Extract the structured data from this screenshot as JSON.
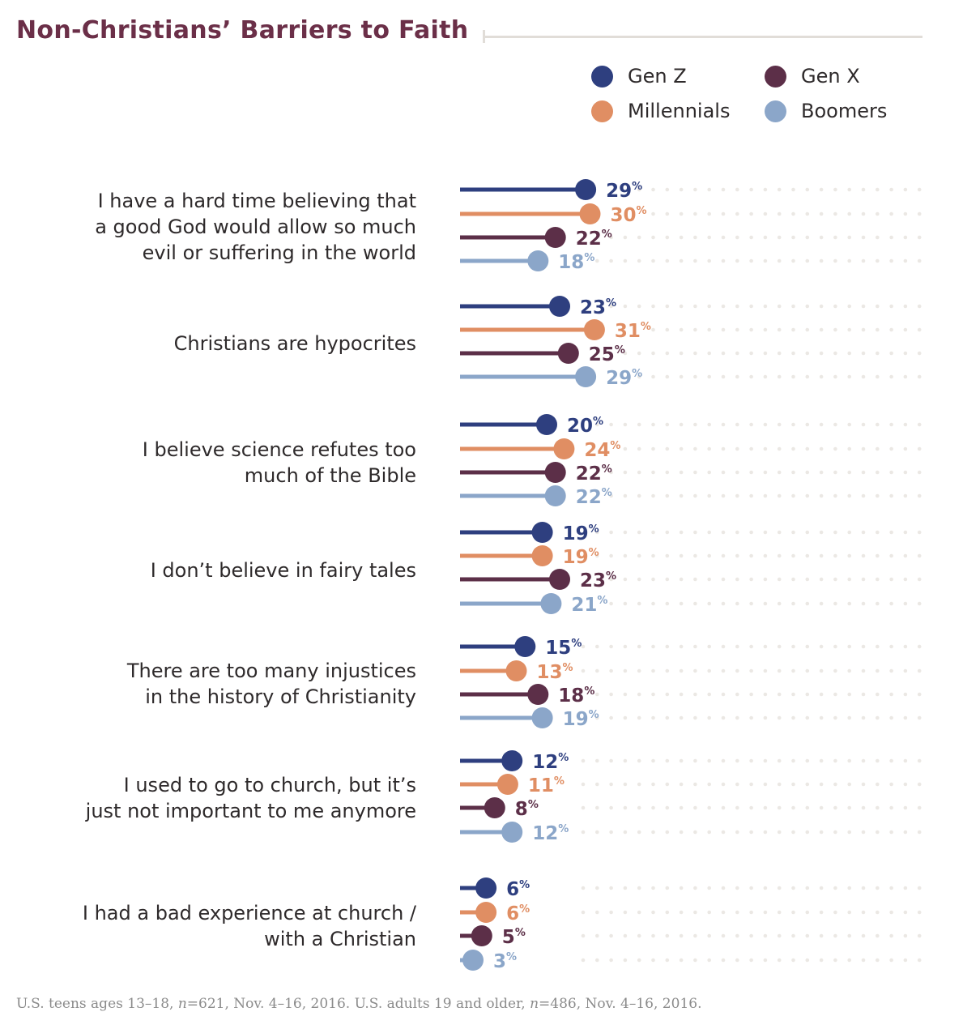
{
  "title": "Non-Christians’ Barriers to Faith",
  "legend": [
    {
      "label": "Gen Z",
      "color": "#2e3f7f"
    },
    {
      "label": "Gen X",
      "color": "#5c2f48"
    },
    {
      "label": "Millennials",
      "color": "#e08e63"
    },
    {
      "label": "Boomers",
      "color": "#8ba6c9"
    }
  ],
  "chart_data": {
    "type": "lollipop",
    "value_suffix": "%",
    "series": [
      {
        "name": "Gen Z",
        "color": "#2e3f7f",
        "values": [
          29,
          23,
          20,
          19,
          15,
          12,
          6
        ]
      },
      {
        "name": "Millennials",
        "color": "#e08e63",
        "values": [
          30,
          31,
          24,
          19,
          13,
          11,
          6
        ]
      },
      {
        "name": "Gen X",
        "color": "#5c2f48",
        "values": [
          22,
          25,
          22,
          23,
          18,
          8,
          5
        ]
      },
      {
        "name": "Boomers",
        "color": "#8ba6c9",
        "values": [
          18,
          29,
          22,
          21,
          19,
          12,
          3
        ]
      }
    ],
    "categories": [
      "I have a hard time believing that\na good God would allow so much\nevil or suffering in the world",
      "Christians are hypocrites",
      "I believe science refutes too\nmuch of the Bible",
      "I don’t believe in fairy tales",
      "There are too many injustices\nin the history of Christianity",
      "I used to go to church, but it’s\njust not important to me anymore",
      "I had a bad experience at church /\nwith a Christian"
    ]
  },
  "footnote": {
    "part1": "U.S. teens ages 13–18, ",
    "n1_label": "n",
    "part2": "=621, Nov. 4–16, 2016. U.S. adults 19 and older, ",
    "n2_label": "n",
    "part3": "=486, Nov. 4–16, 2016."
  }
}
